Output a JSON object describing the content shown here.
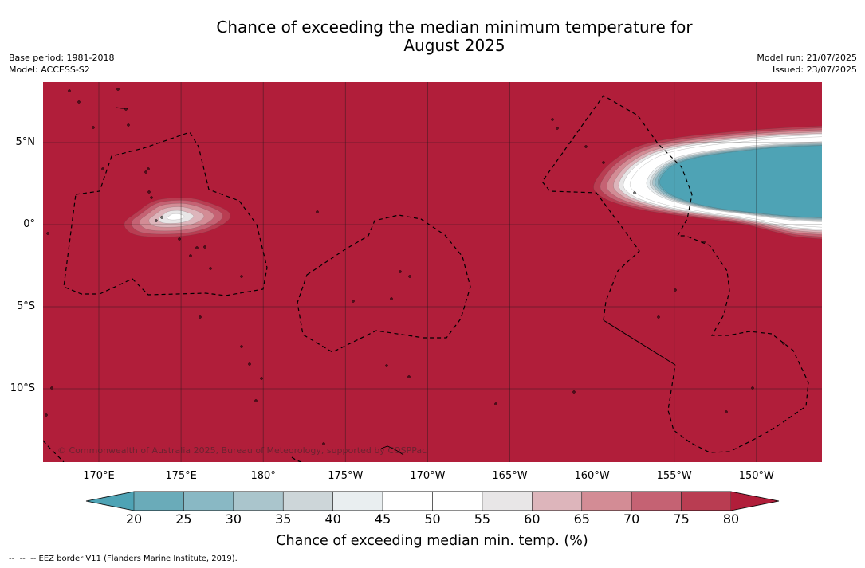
{
  "title": {
    "line1": "Chance of exceeding the median minimum temperature for",
    "line2": "August 2025"
  },
  "metadata": {
    "base_period": "Base period: 1981-2018",
    "model": "Model: ACCESS-S2",
    "model_run": "Model run: 21/07/2025",
    "issued": "Issued: 23/07/2025"
  },
  "map": {
    "latitude_labels": [
      "5°N",
      "0°",
      "5°S",
      "10°S"
    ],
    "longitude_labels": [
      "170°E",
      "175°E",
      "180°",
      "175°W",
      "170°W",
      "165°W",
      "160°W",
      "155°W",
      "150°W"
    ],
    "copyright": "© Commonwealth of Australia 2025, Bureau of Meteorology, supported by COSPPac"
  },
  "colorbar": {
    "label": "Chance of exceeding median min. temp. (%)",
    "ticks": [
      20,
      25,
      30,
      35,
      40,
      45,
      50,
      55,
      60,
      65,
      70,
      75,
      80
    ],
    "colors": [
      "#6aabb9",
      "#89b8c4",
      "#aac5cc",
      "#cdd6d9",
      "#e9eef0",
      "#ffffff",
      "#ffffff",
      "#e8e6e7",
      "#ddb5bb",
      "#d38c95",
      "#c56273",
      "#b93d52"
    ],
    "below_color": "#4ea3b5",
    "above_color": "#b11e3a"
  },
  "footer": {
    "eez_legend": "--  --  -- EEZ border V11 (Flanders Marine Institute, 2019)."
  }
}
